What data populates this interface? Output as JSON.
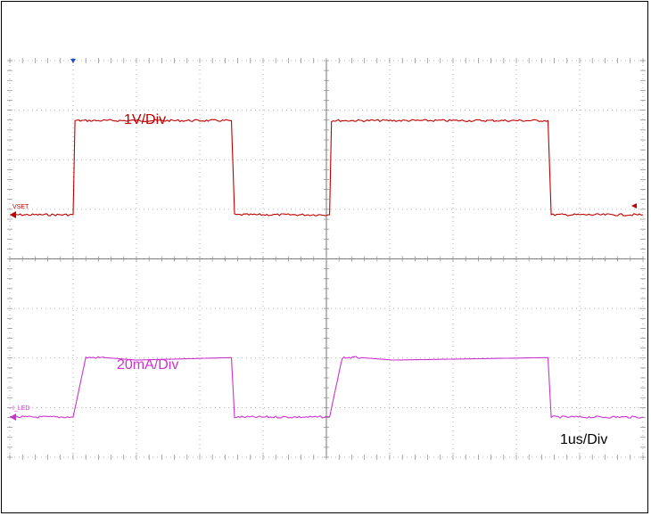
{
  "chart_data": {
    "type": "line",
    "title": "",
    "xlabel": "",
    "ylabel": "",
    "x_divisions": 10,
    "y_divisions": 8,
    "grid": true,
    "timebase_label": "1us/Div",
    "x_unit": "us",
    "series": [
      {
        "name": "VSET",
        "scale_label": "1V/Div",
        "color": "#c00000",
        "x": [
          0,
          1.0,
          1.03,
          3.5,
          3.55,
          5.05,
          5.08,
          8.5,
          8.55,
          10.0
        ],
        "y": [
          0,
          0,
          1.9,
          1.9,
          0,
          0,
          1.9,
          1.9,
          0,
          0
        ]
      },
      {
        "name": "I_LED",
        "scale_label": "20mA/Div",
        "color": "#cc33cc",
        "x": [
          0,
          1.0,
          1.2,
          1.5,
          2.0,
          3.5,
          3.55,
          5.05,
          5.25,
          5.55,
          6.05,
          8.5,
          8.55,
          10.0
        ],
        "y": [
          0,
          0,
          1.2,
          1.2,
          1.15,
          1.2,
          0,
          0,
          1.2,
          1.2,
          1.15,
          1.2,
          0,
          0
        ]
      }
    ],
    "colors": {
      "grid": "#888888",
      "divider": "#555555",
      "trigger_marker": "#1f4fd0"
    }
  }
}
